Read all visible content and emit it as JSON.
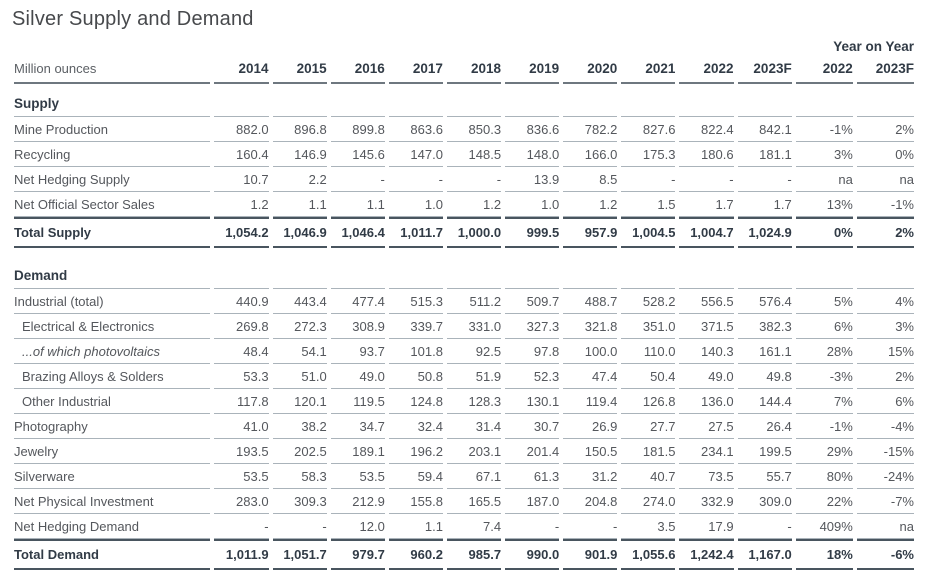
{
  "title": "Silver Supply and Demand",
  "unit_label": "Million ounces",
  "yoy_header": "Year on Year",
  "columns": [
    "2014",
    "2015",
    "2016",
    "2017",
    "2018",
    "2019",
    "2020",
    "2021",
    "2022",
    "2023F"
  ],
  "yoy_columns": [
    "2022",
    "2023F"
  ],
  "colors": {
    "text": "#54575c",
    "bold_text": "#313b46",
    "light_rule": "#aab3ba",
    "heavy_rule": "#49555f"
  },
  "sections": [
    {
      "heading": "Supply",
      "rows": [
        {
          "label": "Mine Production",
          "indent": false,
          "italic": false,
          "values": [
            "882.0",
            "896.8",
            "899.8",
            "863.6",
            "850.3",
            "836.6",
            "782.2",
            "827.6",
            "822.4",
            "842.1"
          ],
          "yoy": [
            "-1%",
            "2%"
          ]
        },
        {
          "label": "Recycling",
          "indent": false,
          "italic": false,
          "values": [
            "160.4",
            "146.9",
            "145.6",
            "147.0",
            "148.5",
            "148.0",
            "166.0",
            "175.3",
            "180.6",
            "181.1"
          ],
          "yoy": [
            "3%",
            "0%"
          ]
        },
        {
          "label": "Net Hedging Supply",
          "indent": false,
          "italic": false,
          "values": [
            "10.7",
            "2.2",
            "-",
            "-",
            "-",
            "13.9",
            "8.5",
            "-",
            "-",
            "-"
          ],
          "yoy": [
            "na",
            "na"
          ]
        },
        {
          "label": "Net Official Sector Sales",
          "indent": false,
          "italic": false,
          "values": [
            "1.2",
            "1.1",
            "1.1",
            "1.0",
            "1.2",
            "1.0",
            "1.2",
            "1.5",
            "1.7",
            "1.7"
          ],
          "yoy": [
            "13%",
            "-1%"
          ]
        }
      ],
      "total": {
        "label": "Total Supply",
        "values": [
          "1,054.2",
          "1,046.9",
          "1,046.4",
          "1,011.7",
          "1,000.0",
          "999.5",
          "957.9",
          "1,004.5",
          "1,004.7",
          "1,024.9"
        ],
        "yoy": [
          "0%",
          "2%"
        ]
      }
    },
    {
      "heading": "Demand",
      "rows": [
        {
          "label": "Industrial (total)",
          "indent": false,
          "italic": false,
          "values": [
            "440.9",
            "443.4",
            "477.4",
            "515.3",
            "511.2",
            "509.7",
            "488.7",
            "528.2",
            "556.5",
            "576.4"
          ],
          "yoy": [
            "5%",
            "4%"
          ]
        },
        {
          "label": "Electrical & Electronics",
          "indent": true,
          "italic": false,
          "values": [
            "269.8",
            "272.3",
            "308.9",
            "339.7",
            "331.0",
            "327.3",
            "321.8",
            "351.0",
            "371.5",
            "382.3"
          ],
          "yoy": [
            "6%",
            "3%"
          ]
        },
        {
          "label": "...of which photovoltaics",
          "indent": true,
          "italic": true,
          "values": [
            "48.4",
            "54.1",
            "93.7",
            "101.8",
            "92.5",
            "97.8",
            "100.0",
            "110.0",
            "140.3",
            "161.1"
          ],
          "yoy": [
            "28%",
            "15%"
          ]
        },
        {
          "label": "Brazing Alloys & Solders",
          "indent": true,
          "italic": false,
          "values": [
            "53.3",
            "51.0",
            "49.0",
            "50.8",
            "51.9",
            "52.3",
            "47.4",
            "50.4",
            "49.0",
            "49.8"
          ],
          "yoy": [
            "-3%",
            "2%"
          ]
        },
        {
          "label": "Other Industrial",
          "indent": true,
          "italic": false,
          "values": [
            "117.8",
            "120.1",
            "119.5",
            "124.8",
            "128.3",
            "130.1",
            "119.4",
            "126.8",
            "136.0",
            "144.4"
          ],
          "yoy": [
            "7%",
            "6%"
          ]
        },
        {
          "label": "Photography",
          "indent": false,
          "italic": false,
          "values": [
            "41.0",
            "38.2",
            "34.7",
            "32.4",
            "31.4",
            "30.7",
            "26.9",
            "27.7",
            "27.5",
            "26.4"
          ],
          "yoy": [
            "-1%",
            "-4%"
          ]
        },
        {
          "label": "Jewelry",
          "indent": false,
          "italic": false,
          "values": [
            "193.5",
            "202.5",
            "189.1",
            "196.2",
            "203.1",
            "201.4",
            "150.5",
            "181.5",
            "234.1",
            "199.5"
          ],
          "yoy": [
            "29%",
            "-15%"
          ]
        },
        {
          "label": "Silverware",
          "indent": false,
          "italic": false,
          "values": [
            "53.5",
            "58.3",
            "53.5",
            "59.4",
            "67.1",
            "61.3",
            "31.2",
            "40.7",
            "73.5",
            "55.7"
          ],
          "yoy": [
            "80%",
            "-24%"
          ]
        },
        {
          "label": "Net Physical Investment",
          "indent": false,
          "italic": false,
          "values": [
            "283.0",
            "309.3",
            "212.9",
            "155.8",
            "165.5",
            "187.0",
            "204.8",
            "274.0",
            "332.9",
            "309.0"
          ],
          "yoy": [
            "22%",
            "-7%"
          ]
        },
        {
          "label": "Net Hedging Demand",
          "indent": false,
          "italic": false,
          "values": [
            "-",
            "-",
            "12.0",
            "1.1",
            "7.4",
            "-",
            "-",
            "3.5",
            "17.9",
            "-"
          ],
          "yoy": [
            "409%",
            "na"
          ]
        }
      ],
      "total": {
        "label": "Total Demand",
        "values": [
          "1,011.9",
          "1,051.7",
          "979.7",
          "960.2",
          "985.7",
          "990.0",
          "901.9",
          "1,055.6",
          "1,242.4",
          "1,167.0"
        ],
        "yoy": [
          "18%",
          "-6%"
        ]
      }
    }
  ]
}
